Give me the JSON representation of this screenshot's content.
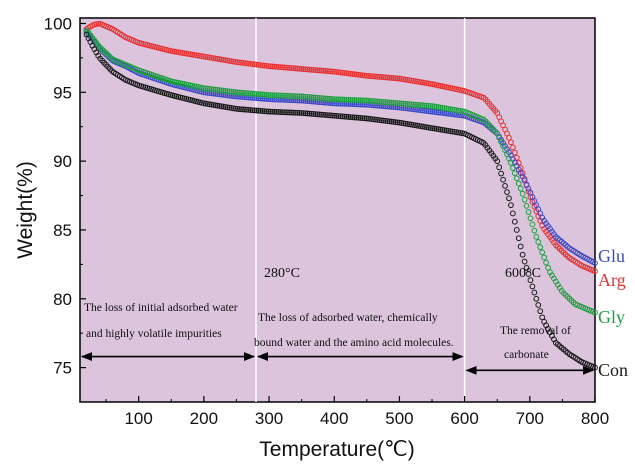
{
  "chart_data": {
    "type": "scatter",
    "title": "",
    "xlabel": "Temperature(℃)",
    "ylabel": "Weight(%)",
    "xlim": [
      10,
      800
    ],
    "ylim": [
      72.5,
      100.4
    ],
    "x_ticks": [
      100,
      200,
      300,
      400,
      500,
      600,
      700,
      800
    ],
    "y_ticks": [
      75,
      80,
      85,
      90,
      95,
      100
    ],
    "plot_background": "#dcc4dc",
    "grid": false,
    "vertical_markers": [
      280,
      600
    ],
    "annotations": {
      "temp_280": "280°C",
      "temp_600": "600°C",
      "region1_line1": "The loss of initial adsorbed water",
      "region1_line2": "and highly volatile impurities",
      "region2_line1": "The loss of adsorbed water, chemically",
      "region2_line2": "bound water and the amino acid molecules.",
      "region3_line1": "The removal of",
      "region3_line2": "carbonate"
    },
    "arrows": [
      {
        "from": 10,
        "to": 280,
        "y": 75.8
      },
      {
        "from": 280,
        "to": 600,
        "y": 75.8
      },
      {
        "from": 600,
        "to": 800,
        "y": 74.8
      }
    ],
    "series": [
      {
        "name": "Arg",
        "color": "#e83030",
        "points": [
          [
            20,
            99.6
          ],
          [
            30,
            99.9
          ],
          [
            40,
            100.0
          ],
          [
            60,
            99.6
          ],
          [
            80,
            99.0
          ],
          [
            100,
            98.6
          ],
          [
            150,
            98.0
          ],
          [
            200,
            97.6
          ],
          [
            250,
            97.2
          ],
          [
            300,
            96.9
          ],
          [
            350,
            96.7
          ],
          [
            400,
            96.5
          ],
          [
            450,
            96.2
          ],
          [
            500,
            96.0
          ],
          [
            550,
            95.6
          ],
          [
            600,
            95.1
          ],
          [
            630,
            94.6
          ],
          [
            650,
            93.5
          ],
          [
            670,
            91.5
          ],
          [
            690,
            89.0
          ],
          [
            700,
            87.5
          ],
          [
            720,
            85.2
          ],
          [
            740,
            83.9
          ],
          [
            760,
            83.0
          ],
          [
            780,
            82.4
          ],
          [
            800,
            82.0
          ]
        ]
      },
      {
        "name": "Glu",
        "color": "#3a48c8",
        "points": [
          [
            20,
            99.4
          ],
          [
            30,
            98.8
          ],
          [
            40,
            98.2
          ],
          [
            60,
            97.3
          ],
          [
            80,
            96.9
          ],
          [
            100,
            96.4
          ],
          [
            150,
            95.6
          ],
          [
            200,
            95.0
          ],
          [
            250,
            94.7
          ],
          [
            300,
            94.5
          ],
          [
            350,
            94.4
          ],
          [
            400,
            94.2
          ],
          [
            450,
            94.1
          ],
          [
            500,
            93.9
          ],
          [
            550,
            93.6
          ],
          [
            600,
            93.3
          ],
          [
            630,
            92.8
          ],
          [
            650,
            92.0
          ],
          [
            670,
            90.5
          ],
          [
            690,
            88.8
          ],
          [
            700,
            87.8
          ],
          [
            720,
            85.8
          ],
          [
            740,
            84.5
          ],
          [
            760,
            83.7
          ],
          [
            780,
            83.1
          ],
          [
            800,
            82.6
          ]
        ]
      },
      {
        "name": "Gly",
        "color": "#1ea040",
        "points": [
          [
            20,
            99.5
          ],
          [
            30,
            98.9
          ],
          [
            40,
            98.3
          ],
          [
            60,
            97.4
          ],
          [
            80,
            97.0
          ],
          [
            100,
            96.6
          ],
          [
            150,
            95.8
          ],
          [
            200,
            95.3
          ],
          [
            250,
            95.0
          ],
          [
            300,
            94.8
          ],
          [
            350,
            94.7
          ],
          [
            400,
            94.5
          ],
          [
            450,
            94.4
          ],
          [
            500,
            94.2
          ],
          [
            550,
            94.0
          ],
          [
            600,
            93.6
          ],
          [
            630,
            93.0
          ],
          [
            650,
            92.0
          ],
          [
            670,
            90.0
          ],
          [
            690,
            87.5
          ],
          [
            700,
            86.0
          ],
          [
            710,
            84.5
          ],
          [
            730,
            82.0
          ],
          [
            750,
            80.5
          ],
          [
            770,
            79.6
          ],
          [
            800,
            79.0
          ]
        ]
      },
      {
        "name": "Con",
        "color": "#1a1a1a",
        "points": [
          [
            20,
            99.2
          ],
          [
            30,
            98.3
          ],
          [
            40,
            97.5
          ],
          [
            60,
            96.5
          ],
          [
            80,
            95.9
          ],
          [
            100,
            95.5
          ],
          [
            150,
            94.8
          ],
          [
            200,
            94.2
          ],
          [
            250,
            93.8
          ],
          [
            300,
            93.6
          ],
          [
            350,
            93.5
          ],
          [
            400,
            93.3
          ],
          [
            450,
            93.1
          ],
          [
            500,
            92.8
          ],
          [
            550,
            92.4
          ],
          [
            600,
            92.0
          ],
          [
            630,
            91.3
          ],
          [
            650,
            90.0
          ],
          [
            670,
            87.0
          ],
          [
            690,
            83.0
          ],
          [
            700,
            81.5
          ],
          [
            710,
            80.0
          ],
          [
            720,
            78.5
          ],
          [
            740,
            76.8
          ],
          [
            760,
            76.0
          ],
          [
            780,
            75.4
          ],
          [
            800,
            75.0
          ]
        ]
      }
    ]
  }
}
